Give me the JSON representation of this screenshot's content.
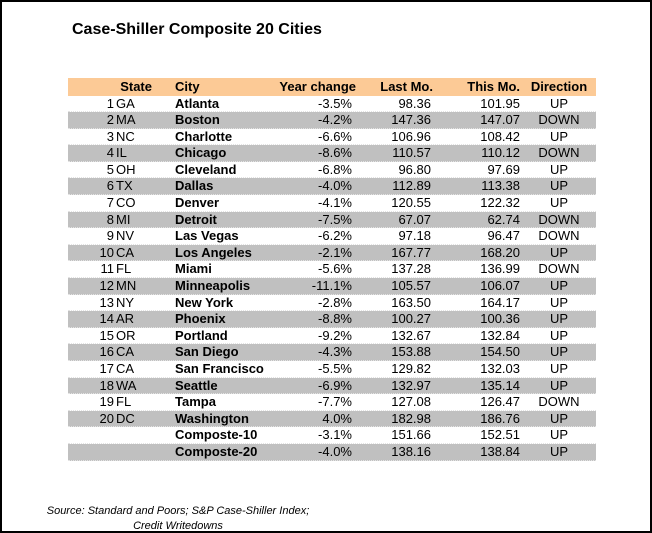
{
  "title": "Case-Shiller Composite 20 Cities",
  "chart_data": {
    "type": "table",
    "title": "Case-Shiller Composite 20 Cities",
    "headers": {
      "state": "State",
      "city": "City",
      "year_change": "Year change",
      "last_mo": "Last Mo.",
      "this_mo": "This Mo.",
      "direction": "Direction"
    },
    "rows": [
      {
        "num": "1",
        "state": "GA",
        "city": "Atlanta",
        "year_change": "-3.5%",
        "last_mo": "98.36",
        "this_mo": "101.95",
        "direction": "UP"
      },
      {
        "num": "2",
        "state": "MA",
        "city": "Boston",
        "year_change": "-4.2%",
        "last_mo": "147.36",
        "this_mo": "147.07",
        "direction": "DOWN"
      },
      {
        "num": "3",
        "state": "NC",
        "city": "Charlotte",
        "year_change": "-6.6%",
        "last_mo": "106.96",
        "this_mo": "108.42",
        "direction": "UP"
      },
      {
        "num": "4",
        "state": "IL",
        "city": "Chicago",
        "year_change": "-8.6%",
        "last_mo": "110.57",
        "this_mo": "110.12",
        "direction": "DOWN"
      },
      {
        "num": "5",
        "state": "OH",
        "city": "Cleveland",
        "year_change": "-6.8%",
        "last_mo": "96.80",
        "this_mo": "97.69",
        "direction": "UP"
      },
      {
        "num": "6",
        "state": "TX",
        "city": "Dallas",
        "year_change": "-4.0%",
        "last_mo": "112.89",
        "this_mo": "113.38",
        "direction": "UP"
      },
      {
        "num": "7",
        "state": "CO",
        "city": "Denver",
        "year_change": "-4.1%",
        "last_mo": "120.55",
        "this_mo": "122.32",
        "direction": "UP"
      },
      {
        "num": "8",
        "state": "MI",
        "city": "Detroit",
        "year_change": "-7.5%",
        "last_mo": "67.07",
        "this_mo": "62.74",
        "direction": "DOWN"
      },
      {
        "num": "9",
        "state": "NV",
        "city": "Las Vegas",
        "year_change": "-6.2%",
        "last_mo": "97.18",
        "this_mo": "96.47",
        "direction": "DOWN"
      },
      {
        "num": "10",
        "state": "CA",
        "city": "Los Angeles",
        "year_change": "-2.1%",
        "last_mo": "167.77",
        "this_mo": "168.20",
        "direction": "UP"
      },
      {
        "num": "11",
        "state": "FL",
        "city": "Miami",
        "year_change": "-5.6%",
        "last_mo": "137.28",
        "this_mo": "136.99",
        "direction": "DOWN"
      },
      {
        "num": "12",
        "state": "MN",
        "city": "Minneapolis",
        "year_change": "-11.1%",
        "last_mo": "105.57",
        "this_mo": "106.07",
        "direction": "UP"
      },
      {
        "num": "13",
        "state": "NY",
        "city": "New York",
        "year_change": "-2.8%",
        "last_mo": "163.50",
        "this_mo": "164.17",
        "direction": "UP"
      },
      {
        "num": "14",
        "state": "AR",
        "city": "Phoenix",
        "year_change": "-8.8%",
        "last_mo": "100.27",
        "this_mo": "100.36",
        "direction": "UP"
      },
      {
        "num": "15",
        "state": "OR",
        "city": "Portland",
        "year_change": "-9.2%",
        "last_mo": "132.67",
        "this_mo": "132.84",
        "direction": "UP"
      },
      {
        "num": "16",
        "state": "CA",
        "city": "San Diego",
        "year_change": "-4.3%",
        "last_mo": "153.88",
        "this_mo": "154.50",
        "direction": "UP"
      },
      {
        "num": "17",
        "state": "CA",
        "city": "San Francisco",
        "year_change": "-5.5%",
        "last_mo": "129.82",
        "this_mo": "132.03",
        "direction": "UP"
      },
      {
        "num": "18",
        "state": "WA",
        "city": "Seattle",
        "year_change": "-6.9%",
        "last_mo": "132.97",
        "this_mo": "135.14",
        "direction": "UP"
      },
      {
        "num": "19",
        "state": "FL",
        "city": "Tampa",
        "year_change": "-7.7%",
        "last_mo": "127.08",
        "this_mo": "126.47",
        "direction": "DOWN"
      },
      {
        "num": "20",
        "state": "DC",
        "city": "Washington",
        "year_change": "4.0%",
        "last_mo": "182.98",
        "this_mo": "186.76",
        "direction": "UP"
      },
      {
        "num": "",
        "state": "",
        "city": "Composte-10",
        "year_change": "-3.1%",
        "last_mo": "151.66",
        "this_mo": "152.51",
        "direction": "UP"
      },
      {
        "num": "",
        "state": "",
        "city": "Composte-20",
        "year_change": "-4.0%",
        "last_mo": "138.16",
        "this_mo": "138.84",
        "direction": "UP"
      }
    ]
  },
  "footer": {
    "line1": "Source: Standard and Poors; S&P Case-Shiller Index;",
    "line2": "Credit Writedowns"
  },
  "colors": {
    "header_bg": "#FCCA96",
    "stripe_bg": "#C0C0C0",
    "border": "#000000"
  }
}
